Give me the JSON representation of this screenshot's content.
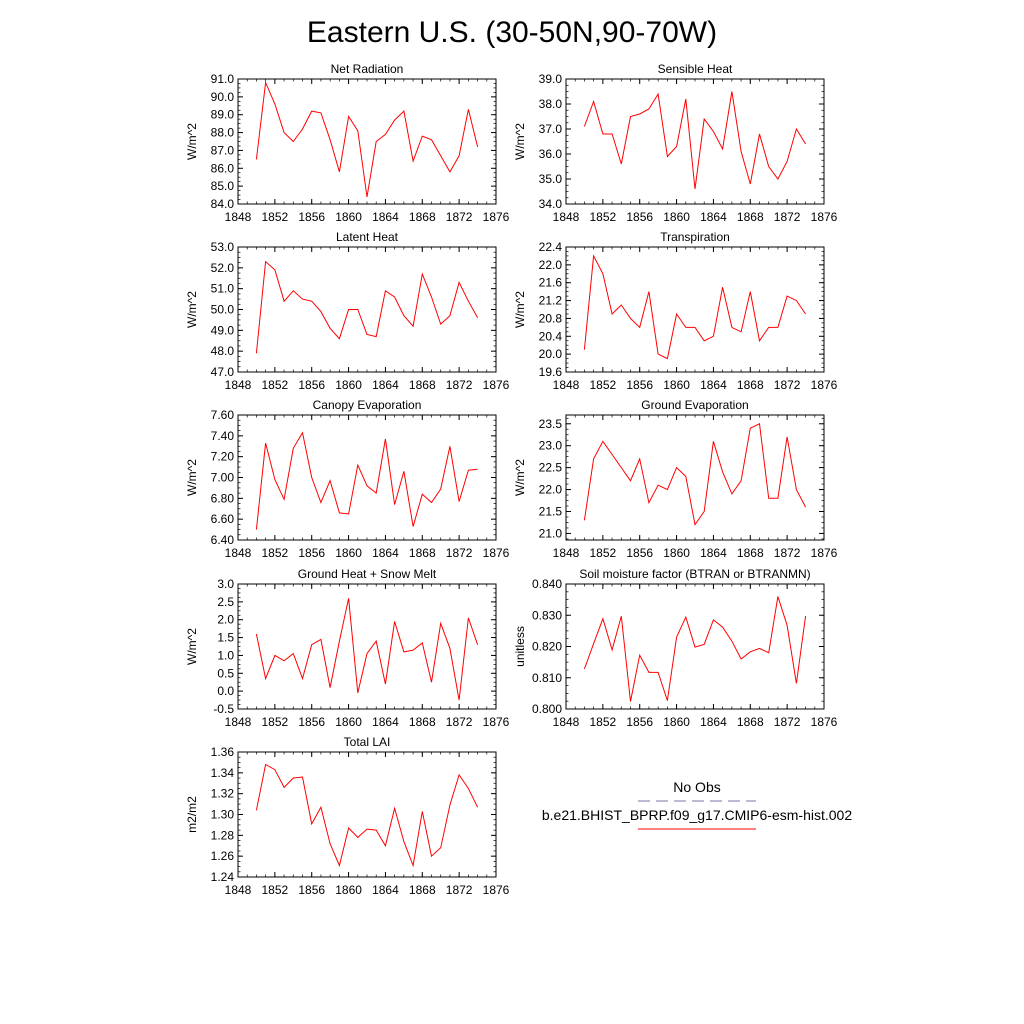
{
  "title": "Eastern U.S. (30-50N,90-70W)",
  "legend": {
    "obs_label": "No Obs",
    "model_label": "b.e21.BHIST_BPRP.f09_g17.CMIP6-esm-hist.002",
    "obs_line_color": "#7777aa",
    "model_line_color": "#ff0000"
  },
  "chart_data": [
    {
      "type": "line",
      "title": "Net Radiation",
      "ylabel": "W/m^2",
      "xlim": [
        1848,
        1876
      ],
      "xticks": [
        "1848",
        "1852",
        "1856",
        "1860",
        "1864",
        "1868",
        "1872",
        "1876"
      ],
      "ylim": [
        84,
        91
      ],
      "yticks": [
        "84.0",
        "85.0",
        "86.0",
        "87.0",
        "88.0",
        "89.0",
        "90.0",
        "91.0"
      ],
      "series": [
        {
          "x": [
            1850,
            1851,
            1852,
            1853,
            1854,
            1855,
            1856,
            1857,
            1858,
            1859,
            1860,
            1861,
            1862,
            1863,
            1864,
            1865,
            1866,
            1867,
            1868,
            1869,
            1870,
            1871,
            1872,
            1873,
            1874
          ],
          "values": [
            86.5,
            90.8,
            89.6,
            88.0,
            87.5,
            88.2,
            89.2,
            89.1,
            87.6,
            85.8,
            88.9,
            88.1,
            84.4,
            87.5,
            87.9,
            88.7,
            89.2,
            86.4,
            87.8,
            87.6,
            86.7,
            85.8,
            86.7,
            89.3,
            87.2
          ]
        }
      ]
    },
    {
      "type": "line",
      "title": "Sensible Heat",
      "ylabel": "W/m^2",
      "xlim": [
        1848,
        1876
      ],
      "xticks": [
        "1848",
        "1852",
        "1856",
        "1860",
        "1864",
        "1868",
        "1872",
        "1876"
      ],
      "ylim": [
        34,
        39
      ],
      "yticks": [
        "34.0",
        "35.0",
        "36.0",
        "37.0",
        "38.0",
        "39.0"
      ],
      "series": [
        {
          "x": [
            1850,
            1851,
            1852,
            1853,
            1854,
            1855,
            1856,
            1857,
            1858,
            1859,
            1860,
            1861,
            1862,
            1863,
            1864,
            1865,
            1866,
            1867,
            1868,
            1869,
            1870,
            1871,
            1872,
            1873,
            1874
          ],
          "values": [
            37.1,
            38.1,
            36.8,
            36.8,
            35.6,
            37.5,
            37.6,
            37.8,
            38.4,
            35.9,
            36.3,
            38.2,
            34.6,
            37.4,
            36.9,
            36.2,
            38.5,
            36.1,
            34.8,
            36.8,
            35.5,
            35.0,
            35.7,
            37.0,
            36.4
          ]
        }
      ]
    },
    {
      "type": "line",
      "title": "Latent Heat",
      "ylabel": "W/m^2",
      "xlim": [
        1848,
        1876
      ],
      "xticks": [
        "1848",
        "1852",
        "1856",
        "1860",
        "1864",
        "1868",
        "1872",
        "1876"
      ],
      "ylim": [
        47,
        53
      ],
      "yticks": [
        "47.0",
        "48.0",
        "49.0",
        "50.0",
        "51.0",
        "52.0",
        "53.0"
      ],
      "series": [
        {
          "x": [
            1850,
            1851,
            1852,
            1853,
            1854,
            1855,
            1856,
            1857,
            1858,
            1859,
            1860,
            1861,
            1862,
            1863,
            1864,
            1865,
            1866,
            1867,
            1868,
            1869,
            1870,
            1871,
            1872,
            1873,
            1874
          ],
          "values": [
            47.9,
            52.3,
            51.9,
            50.4,
            50.9,
            50.5,
            50.4,
            49.9,
            49.1,
            48.6,
            50.0,
            50.0,
            48.8,
            48.7,
            50.9,
            50.6,
            49.7,
            49.2,
            51.7,
            50.6,
            49.3,
            49.7,
            51.3,
            50.4,
            49.6
          ]
        }
      ]
    },
    {
      "type": "line",
      "title": "Transpiration",
      "ylabel": "W/m^2",
      "xlim": [
        1848,
        1876
      ],
      "xticks": [
        "1848",
        "1852",
        "1856",
        "1860",
        "1864",
        "1868",
        "1872",
        "1876"
      ],
      "ylim": [
        19.6,
        22.4
      ],
      "yticks": [
        "19.6",
        "20.0",
        "20.4",
        "20.8",
        "21.2",
        "21.6",
        "22.0",
        "22.4"
      ],
      "series": [
        {
          "x": [
            1850,
            1851,
            1852,
            1853,
            1854,
            1855,
            1856,
            1857,
            1858,
            1859,
            1860,
            1861,
            1862,
            1863,
            1864,
            1865,
            1866,
            1867,
            1868,
            1869,
            1870,
            1871,
            1872,
            1873,
            1874
          ],
          "values": [
            20.1,
            22.2,
            21.8,
            20.9,
            21.1,
            20.8,
            20.6,
            21.4,
            20.0,
            19.9,
            20.9,
            20.6,
            20.6,
            20.3,
            20.4,
            21.5,
            20.6,
            20.5,
            21.4,
            20.3,
            20.6,
            20.6,
            21.3,
            21.2,
            20.9
          ]
        }
      ]
    },
    {
      "type": "line",
      "title": "Canopy Evaporation",
      "ylabel": "W/m^2",
      "xlim": [
        1848,
        1876
      ],
      "xticks": [
        "1848",
        "1852",
        "1856",
        "1860",
        "1864",
        "1868",
        "1872",
        "1876"
      ],
      "ylim": [
        6.4,
        7.6
      ],
      "yticks": [
        "6.40",
        "6.60",
        "6.80",
        "7.00",
        "7.20",
        "7.40",
        "7.60"
      ],
      "series": [
        {
          "x": [
            1850,
            1851,
            1852,
            1853,
            1854,
            1855,
            1856,
            1857,
            1858,
            1859,
            1860,
            1861,
            1862,
            1863,
            1864,
            1865,
            1866,
            1867,
            1868,
            1869,
            1870,
            1871,
            1872,
            1873,
            1874
          ],
          "values": [
            6.5,
            7.33,
            6.98,
            6.79,
            7.28,
            7.43,
            7.0,
            6.76,
            6.97,
            6.66,
            6.65,
            7.12,
            6.92,
            6.85,
            7.37,
            6.74,
            7.06,
            6.53,
            6.84,
            6.76,
            6.89,
            7.3,
            6.77,
            7.07,
            7.08
          ]
        }
      ]
    },
    {
      "type": "line",
      "title": "Ground Evaporation",
      "ylabel": "W/m^2",
      "xlim": [
        1848,
        1876
      ],
      "xticks": [
        "1848",
        "1852",
        "1856",
        "1860",
        "1864",
        "1868",
        "1872",
        "1876"
      ],
      "ylim": [
        20.85,
        23.7
      ],
      "yticks": [
        "21.0",
        "21.5",
        "22.0",
        "22.5",
        "23.0",
        "23.5"
      ],
      "ytick_values": [
        21.0,
        21.5,
        22.0,
        22.5,
        23.0,
        23.5
      ],
      "series": [
        {
          "x": [
            1850,
            1851,
            1852,
            1853,
            1854,
            1855,
            1856,
            1857,
            1858,
            1859,
            1860,
            1861,
            1862,
            1863,
            1864,
            1865,
            1866,
            1867,
            1868,
            1869,
            1870,
            1871,
            1872,
            1873,
            1874
          ],
          "values": [
            21.3,
            22.7,
            23.1,
            22.8,
            22.5,
            22.2,
            22.7,
            21.7,
            22.1,
            22.0,
            22.5,
            22.3,
            21.2,
            21.5,
            23.1,
            22.4,
            21.9,
            22.2,
            23.4,
            23.5,
            21.8,
            21.8,
            23.2,
            22.0,
            21.6
          ]
        }
      ]
    },
    {
      "type": "line",
      "title": "Ground Heat + Snow Melt",
      "ylabel": "W/m^2",
      "xlim": [
        1848,
        1876
      ],
      "xticks": [
        "1848",
        "1852",
        "1856",
        "1860",
        "1864",
        "1868",
        "1872",
        "1876"
      ],
      "ylim": [
        -0.5,
        3.0
      ],
      "yticks": [
        "-0.5",
        "0.0",
        "0.5",
        "1.0",
        "1.5",
        "2.0",
        "2.5",
        "3.0"
      ],
      "series": [
        {
          "x": [
            1850,
            1851,
            1852,
            1853,
            1854,
            1855,
            1856,
            1857,
            1858,
            1859,
            1860,
            1861,
            1862,
            1863,
            1864,
            1865,
            1866,
            1867,
            1868,
            1869,
            1870,
            1871,
            1872,
            1873,
            1874
          ],
          "values": [
            1.6,
            0.35,
            1.0,
            0.85,
            1.05,
            0.35,
            1.3,
            1.45,
            0.1,
            1.4,
            2.6,
            -0.05,
            1.05,
            1.4,
            0.2,
            1.95,
            1.1,
            1.15,
            1.35,
            0.25,
            1.9,
            1.2,
            -0.25,
            2.05,
            1.3
          ]
        }
      ]
    },
    {
      "type": "line",
      "title": "Soil moisture factor (BTRAN or BTRANMN)",
      "ylabel": "unitless",
      "xlim": [
        1848,
        1876
      ],
      "xticks": [
        "1848",
        "1852",
        "1856",
        "1860",
        "1864",
        "1868",
        "1872",
        "1876"
      ],
      "ylim": [
        0.8,
        0.84
      ],
      "yticks": [
        "0.800",
        "0.810",
        "0.820",
        "0.830",
        "0.840"
      ],
      "series": [
        {
          "x": [
            1850,
            1851,
            1852,
            1853,
            1854,
            1855,
            1856,
            1857,
            1858,
            1859,
            1860,
            1861,
            1862,
            1863,
            1864,
            1865,
            1866,
            1867,
            1868,
            1869,
            1870,
            1871,
            1872,
            1873,
            1874
          ],
          "values": [
            0.8128,
            0.8209,
            0.8289,
            0.8189,
            0.8297,
            0.8024,
            0.8172,
            0.8117,
            0.8117,
            0.8027,
            0.823,
            0.8294,
            0.8198,
            0.8207,
            0.8285,
            0.8262,
            0.8217,
            0.816,
            0.8183,
            0.8194,
            0.818,
            0.836,
            0.8268,
            0.8082,
            0.8298
          ]
        }
      ]
    },
    {
      "type": "line",
      "title": "Total LAI",
      "ylabel": "m2/m2",
      "xlim": [
        1848,
        1876
      ],
      "xticks": [
        "1848",
        "1852",
        "1856",
        "1860",
        "1864",
        "1868",
        "1872",
        "1876"
      ],
      "ylim": [
        1.24,
        1.36
      ],
      "yticks": [
        "1.24",
        "1.26",
        "1.28",
        "1.30",
        "1.32",
        "1.34",
        "1.36"
      ],
      "series": [
        {
          "x": [
            1850,
            1851,
            1852,
            1853,
            1854,
            1855,
            1856,
            1857,
            1858,
            1859,
            1860,
            1861,
            1862,
            1863,
            1864,
            1865,
            1866,
            1867,
            1868,
            1869,
            1870,
            1871,
            1872,
            1873,
            1874
          ],
          "values": [
            1.304,
            1.348,
            1.343,
            1.326,
            1.335,
            1.336,
            1.291,
            1.307,
            1.272,
            1.251,
            1.287,
            1.278,
            1.286,
            1.285,
            1.27,
            1.306,
            1.274,
            1.251,
            1.303,
            1.26,
            1.268,
            1.309,
            1.338,
            1.325,
            1.307
          ]
        }
      ]
    }
  ]
}
